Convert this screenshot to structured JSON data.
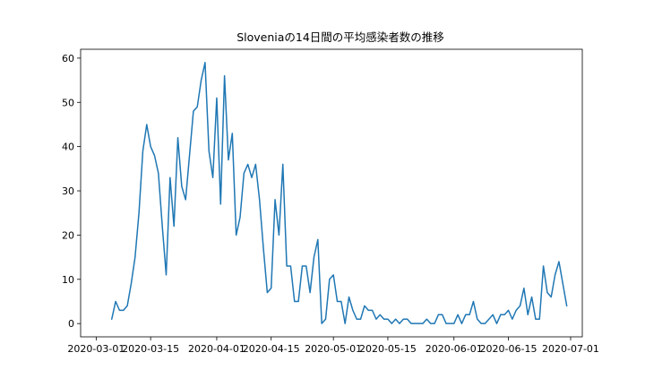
{
  "chart_data": {
    "type": "line",
    "title": "Sloveniaの14日間の平均感染者数の推移",
    "xlabel": "",
    "ylabel": "",
    "grid": false,
    "ylim": [
      -3,
      62
    ],
    "xlim": [
      "2020-02-26",
      "2020-07-04"
    ],
    "x_start": "2020-03-05",
    "series": [
      {
        "color": "#1f77b4",
        "x": [
          "2020-03-05",
          "2020-03-06",
          "2020-03-07",
          "2020-03-08",
          "2020-03-09",
          "2020-03-10",
          "2020-03-11",
          "2020-03-12",
          "2020-03-13",
          "2020-03-14",
          "2020-03-15",
          "2020-03-16",
          "2020-03-17",
          "2020-03-18",
          "2020-03-19",
          "2020-03-20",
          "2020-03-21",
          "2020-03-22",
          "2020-03-23",
          "2020-03-24",
          "2020-03-25",
          "2020-03-26",
          "2020-03-27",
          "2020-03-28",
          "2020-03-29",
          "2020-03-30",
          "2020-03-31",
          "2020-04-01",
          "2020-04-02",
          "2020-04-03",
          "2020-04-04",
          "2020-04-05",
          "2020-04-06",
          "2020-04-07",
          "2020-04-08",
          "2020-04-09",
          "2020-04-10",
          "2020-04-11",
          "2020-04-12",
          "2020-04-13",
          "2020-04-14",
          "2020-04-15",
          "2020-04-16",
          "2020-04-17",
          "2020-04-18",
          "2020-04-19",
          "2020-04-20",
          "2020-04-21",
          "2020-04-22",
          "2020-04-23",
          "2020-04-24",
          "2020-04-25",
          "2020-04-26",
          "2020-04-27",
          "2020-04-28",
          "2020-04-29",
          "2020-04-30",
          "2020-05-01",
          "2020-05-02",
          "2020-05-03",
          "2020-05-04",
          "2020-05-05",
          "2020-05-06",
          "2020-05-07",
          "2020-05-08",
          "2020-05-09",
          "2020-05-10",
          "2020-05-11",
          "2020-05-12",
          "2020-05-13",
          "2020-05-14",
          "2020-05-15",
          "2020-05-16",
          "2020-05-17",
          "2020-05-18",
          "2020-05-19",
          "2020-05-20",
          "2020-05-21",
          "2020-05-22",
          "2020-05-23",
          "2020-05-24",
          "2020-05-25",
          "2020-05-26",
          "2020-05-27",
          "2020-05-28",
          "2020-05-29",
          "2020-05-30",
          "2020-05-31",
          "2020-06-01",
          "2020-06-02",
          "2020-06-03",
          "2020-06-04",
          "2020-06-05",
          "2020-06-06",
          "2020-06-07",
          "2020-06-08",
          "2020-06-09",
          "2020-06-10",
          "2020-06-11",
          "2020-06-12",
          "2020-06-13",
          "2020-06-14",
          "2020-06-15",
          "2020-06-16",
          "2020-06-17",
          "2020-06-18",
          "2020-06-19",
          "2020-06-20",
          "2020-06-21",
          "2020-06-22",
          "2020-06-23",
          "2020-06-24",
          "2020-06-25",
          "2020-06-26",
          "2020-06-27",
          "2020-06-28",
          "2020-06-29",
          "2020-06-30"
        ],
        "values": [
          1,
          5,
          3,
          3,
          4,
          9,
          15,
          25,
          39,
          45,
          40,
          38,
          34,
          22,
          11,
          33,
          22,
          42,
          31,
          28,
          38,
          48,
          49,
          55,
          59,
          39,
          33,
          51,
          27,
          56,
          37,
          43,
          20,
          24,
          34,
          36,
          33,
          36,
          28,
          17,
          7,
          8,
          28,
          20,
          36,
          13,
          13,
          5,
          5,
          13,
          13,
          7,
          15,
          19,
          0,
          1,
          10,
          11,
          5,
          5,
          0,
          6,
          3,
          1,
          1,
          4,
          3,
          3,
          1,
          2,
          1,
          1,
          0,
          1,
          0,
          1,
          1,
          0,
          0,
          0,
          0,
          1,
          0,
          0,
          2,
          2,
          0,
          0,
          0,
          2,
          0,
          2,
          2,
          5,
          1,
          0,
          0,
          1,
          2,
          0,
          2,
          2,
          3,
          1,
          3,
          4,
          8,
          2,
          6,
          1,
          1,
          13,
          7,
          6,
          11,
          14,
          9,
          4
        ]
      }
    ],
    "yticks": [
      0,
      10,
      20,
      30,
      40,
      50,
      60
    ],
    "xticks": [
      "2020-03-01",
      "2020-03-15",
      "2020-04-01",
      "2020-04-15",
      "2020-05-01",
      "2020-05-15",
      "2020-06-01",
      "2020-06-15",
      "2020-07-01"
    ]
  }
}
